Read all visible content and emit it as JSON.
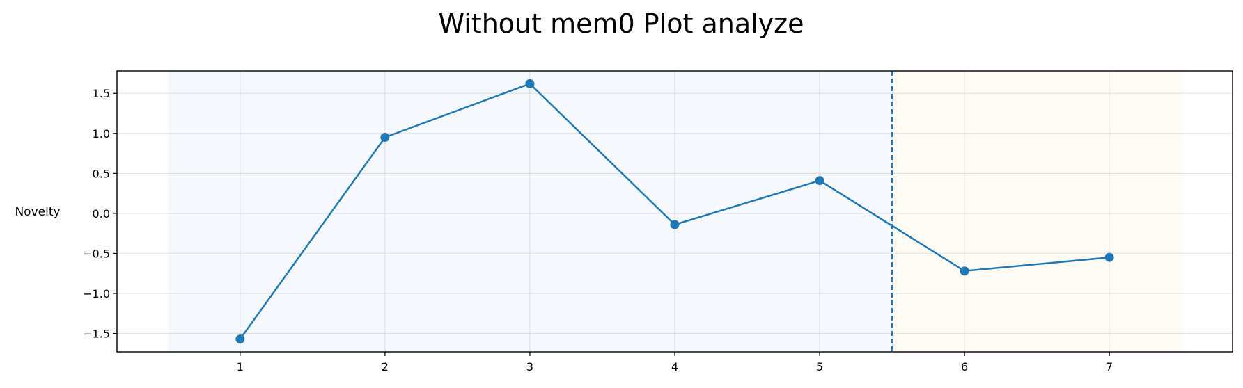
{
  "chart_data": {
    "type": "line",
    "title": "Without mem0 Plot analyze",
    "xlabel": "",
    "ylabel": "Novelty",
    "x": [
      1,
      2,
      3,
      4,
      5,
      6,
      7
    ],
    "series": [
      {
        "values": [
          -1.57,
          0.95,
          1.62,
          -0.14,
          0.41,
          -0.72,
          -0.55
        ]
      }
    ],
    "xlim": [
      0.15,
      7.85
    ],
    "ylim": [
      -1.73,
      1.78
    ],
    "xticks": [
      1,
      2,
      3,
      4,
      5,
      6,
      7
    ],
    "yticks": [
      -1.5,
      -1.0,
      -0.5,
      0.0,
      0.5,
      1.0,
      1.5
    ],
    "ytick_labels": [
      "−1.5",
      "−1.0",
      "−0.5",
      "0.0",
      "0.5",
      "1.0",
      "1.5"
    ],
    "regions": [
      {
        "from": 0.5,
        "to": 5.5,
        "color": "#f5f8fc"
      },
      {
        "from": 5.5,
        "to": 7.5,
        "color": "#fefaf4"
      }
    ],
    "vline": {
      "x": 5.5,
      "style": "dashed",
      "color": "#1f77b4"
    },
    "line_color": "#1f77b4",
    "grid": true
  }
}
